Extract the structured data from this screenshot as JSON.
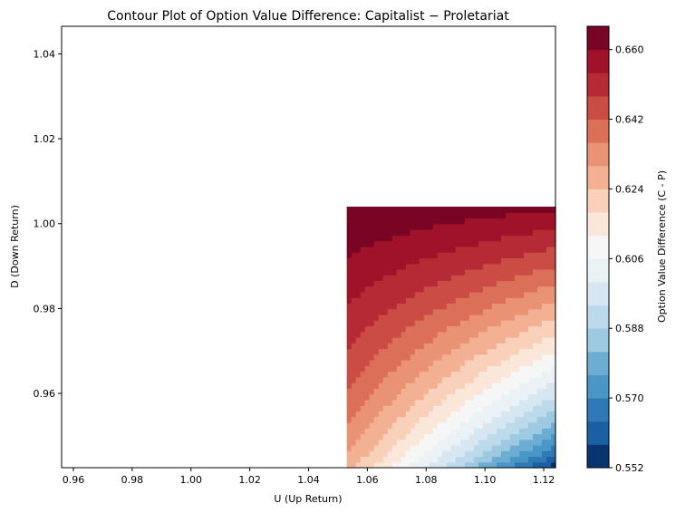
{
  "chart_data": {
    "type": "contour",
    "title": "Contour Plot of Option Value Difference: Capitalist − Proletariat",
    "xlabel": "U (Up Return)",
    "ylabel": "D (Down Return)",
    "xlim": [
      0.956,
      1.124
    ],
    "ylim": [
      0.9425,
      1.0465
    ],
    "x_ticks": [
      "0.96",
      "0.98",
      "1.00",
      "1.02",
      "1.04",
      "1.06",
      "1.08",
      "1.10",
      "1.12"
    ],
    "y_ticks": [
      "0.96",
      "0.98",
      "1.00",
      "1.02",
      "1.04"
    ],
    "data_extent": {
      "x": [
        1.053,
        1.124
      ],
      "y": [
        0.9425,
        1.004
      ]
    },
    "samples": {
      "description": "Option value difference (C - P) at grid corners",
      "points": [
        {
          "u": 1.053,
          "d": 1.004,
          "value": 0.666
        },
        {
          "u": 1.124,
          "d": 1.004,
          "value": 0.661
        },
        {
          "u": 1.053,
          "d": 0.9425,
          "value": 0.626
        },
        {
          "u": 1.124,
          "d": 0.9425,
          "value": 0.553
        }
      ]
    },
    "colorbar": {
      "label": "Option Value Difference (C - P)",
      "range": [
        0.552,
        0.666
      ],
      "levels": 19,
      "tick_labels": [
        "0.552",
        "0.570",
        "0.588",
        "0.606",
        "0.624",
        "0.642",
        "0.660"
      ],
      "colormap": "RdBu_r",
      "colors": [
        "#083470",
        "#1b5fa5",
        "#2f79b6",
        "#4a96c6",
        "#6eadd3",
        "#9dc9e1",
        "#bcdaeb",
        "#d7e7f1",
        "#ebf2f6",
        "#f6f6f6",
        "#fbe6da",
        "#f9d0b9",
        "#f4b093",
        "#ea9374",
        "#dc6f58",
        "#cb4c45",
        "#b52a34",
        "#9f1229",
        "#7a0424"
      ]
    }
  }
}
